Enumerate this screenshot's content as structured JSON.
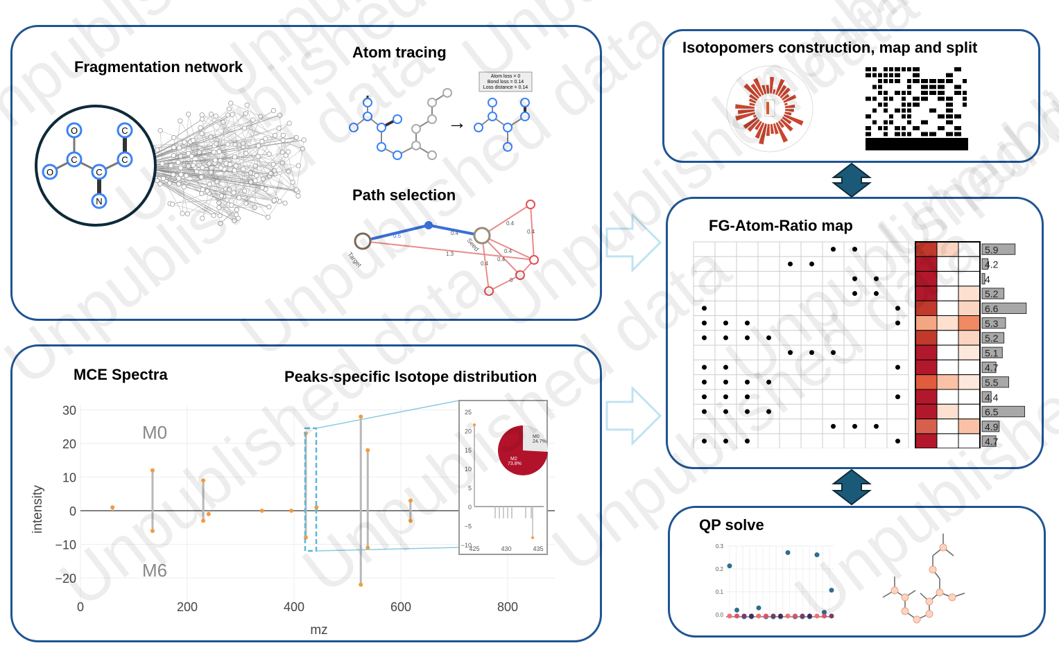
{
  "watermark": "Unpublished data",
  "panels": {
    "fragmentation": {
      "title": "Fragmentation network",
      "molecule_atoms": [
        "O",
        "C",
        "C",
        "O",
        "C",
        "C",
        "C",
        "N"
      ]
    },
    "atom_tracing": {
      "title": "Atom tracing",
      "legend": [
        "Atom loss = 0",
        "Bond loss = 0.14",
        "Loss distance = 0.14"
      ],
      "arrow": "→"
    },
    "path_selection": {
      "title": "Path selection",
      "seed_label": "Seed",
      "target_label": "Target",
      "edge_labels": [
        "0.5",
        "0.4",
        "1.3",
        "0.4",
        "0.4",
        "0.4",
        "0.4",
        "0.4",
        "0"
      ]
    },
    "isotopomers": {
      "title": "Isotopomers construction, map and split"
    },
    "fg_map": {
      "title": "FG-Atom-Ratio map",
      "bar_values": [
        "5.9",
        "4.2",
        "4",
        "5.2",
        "6.6",
        "5.3",
        "5.2",
        "5.1",
        "4.7",
        "5.5",
        "4.4",
        "6.5",
        "4.9",
        "4.7"
      ],
      "dot_matrix": [
        [
          0,
          0,
          0,
          0,
          0,
          0,
          1,
          1,
          0,
          0
        ],
        [
          0,
          0,
          0,
          0,
          1,
          1,
          0,
          0,
          0,
          0
        ],
        [
          0,
          0,
          0,
          0,
          0,
          0,
          0,
          1,
          1,
          0
        ],
        [
          0,
          0,
          0,
          0,
          0,
          0,
          0,
          1,
          1,
          0
        ],
        [
          1,
          0,
          0,
          0,
          0,
          0,
          0,
          0,
          0,
          1
        ],
        [
          1,
          1,
          1,
          0,
          0,
          0,
          0,
          0,
          0,
          1
        ],
        [
          1,
          1,
          1,
          1,
          0,
          0,
          0,
          0,
          0,
          0
        ],
        [
          0,
          0,
          0,
          0,
          1,
          1,
          1,
          0,
          0,
          0
        ],
        [
          1,
          1,
          0,
          0,
          0,
          0,
          0,
          0,
          0,
          1
        ],
        [
          1,
          1,
          1,
          1,
          0,
          0,
          0,
          0,
          0,
          0
        ],
        [
          1,
          1,
          1,
          0,
          0,
          0,
          0,
          0,
          0,
          1
        ],
        [
          1,
          1,
          1,
          1,
          0,
          0,
          0,
          0,
          0,
          0
        ],
        [
          0,
          0,
          0,
          0,
          0,
          0,
          1,
          1,
          1,
          0
        ],
        [
          1,
          1,
          1,
          0,
          0,
          0,
          0,
          0,
          0,
          1
        ]
      ],
      "heat_colors": [
        [
          "#c0392b",
          "#fbd5c2",
          "#ffffff"
        ],
        [
          "#b2182b",
          "#ffffff",
          "#ffffff"
        ],
        [
          "#b2182b",
          "#ffffff",
          "#ffffff"
        ],
        [
          "#b2182b",
          "#ffffff",
          "#fde0d0"
        ],
        [
          "#c0392b",
          "#ffffff",
          "#fbd5c2"
        ],
        [
          "#f4a582",
          "#fde0d0",
          "#ef8a62"
        ],
        [
          "#c0392b",
          "#ffffff",
          "#fbd5c2"
        ],
        [
          "#b2182b",
          "#ffffff",
          "#fde8dc"
        ],
        [
          "#b2182b",
          "#ffffff",
          "#ffffff"
        ],
        [
          "#e05c3c",
          "#fbc1a6",
          "#fde8dc"
        ],
        [
          "#b2182b",
          "#ffffff",
          "#ffffff"
        ],
        [
          "#b2182b",
          "#fde0d0",
          "#ffffff"
        ],
        [
          "#d6604d",
          "#ffffff",
          "#fbc1a6"
        ],
        [
          "#b2182b",
          "#ffffff",
          "#ffffff"
        ]
      ]
    },
    "qp": {
      "title": "QP solve",
      "y_ticks": [
        "0.3",
        "0.2",
        "0.1",
        "0.0"
      ]
    },
    "mce": {
      "title": "MCE Spectra",
      "ylabel": "intensity",
      "xlabel": "mz",
      "m0_label": "M0",
      "m6_label": "M6",
      "y_ticks": [
        "30",
        "20",
        "10",
        "0",
        "−10",
        "−20"
      ],
      "x_ticks": [
        "0",
        "200",
        "400",
        "600",
        "800"
      ]
    },
    "peaks": {
      "title": "Peaks-specific Isotope distribution",
      "inset_y_ticks": [
        "25",
        "20",
        "15",
        "10",
        "5",
        "0",
        "−5",
        "−10"
      ],
      "inset_x_ticks": [
        "425",
        "430",
        "435"
      ],
      "pie_labels": [
        "M0",
        "24.7%",
        "M2",
        "73.8%"
      ]
    }
  },
  "colors": {
    "panel_border": "#1f5493",
    "connector": "#1a5a78",
    "light_arrow": "#bfe3f3",
    "dot_orange": "#f59a3c",
    "stem_gray": "#b8b8b8",
    "pie_red": "#b2132a",
    "atom_blue": "#3b82f6"
  }
}
